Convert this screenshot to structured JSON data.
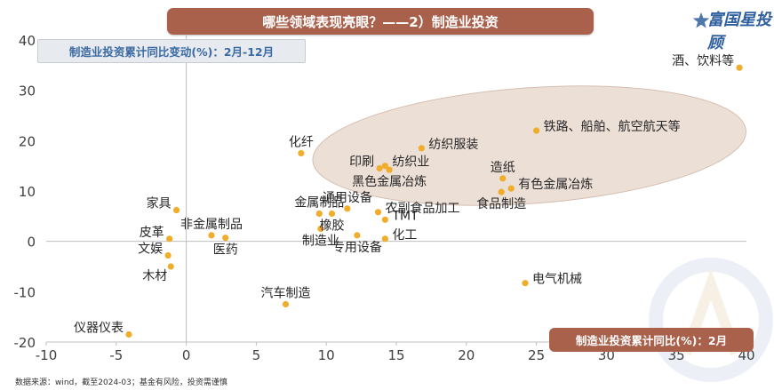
{
  "header": {
    "title": "哪些领域表现亮眼？——2）制造业投资",
    "y_axis_box": "制造业投资累计同比变动(%)：2月-12月",
    "x_axis_box": "制造业投资累计同比(%)：2月"
  },
  "brand": {
    "text": "富国星投顾",
    "icon": "star-logo-icon"
  },
  "footer": {
    "source": "数据来源：wind，截至2024-03；基金有风险，投资需谨慎"
  },
  "colors": {
    "banner": "#a9614b",
    "point": "#f0ad2b",
    "ellipse": "#e9d9cf",
    "subtitle_text": "#3a6aa3",
    "brand": "#2f5f9e"
  },
  "chart_data": {
    "type": "scatter",
    "xlim": [
      -10,
      40
    ],
    "ylim": [
      -20,
      40
    ],
    "x_ticks": [
      "-10",
      "-5",
      "0",
      "5",
      "10",
      "15",
      "20",
      "25",
      "30",
      "35",
      "40"
    ],
    "y_ticks": [
      "-20",
      "-10",
      "0",
      "10",
      "20",
      "30",
      "40"
    ],
    "grid": false,
    "highlight_ellipse": {
      "cx": 24.5,
      "cy": 19,
      "rx": 15.5,
      "ry": 11.5
    },
    "points": [
      {
        "label": "酒、饮料等",
        "x": 39.5,
        "y": 34.5,
        "label_pos": "left"
      },
      {
        "label": "铁路、船舶、航空航天等",
        "x": 25,
        "y": 22,
        "label_pos": "right"
      },
      {
        "label": "纺织服装",
        "x": 16.8,
        "y": 18.5,
        "label_pos": "right"
      },
      {
        "label": "化纤",
        "x": 8.2,
        "y": 17.5,
        "label_pos": "above"
      },
      {
        "label": "印刷",
        "x": 13.8,
        "y": 14.5,
        "label_pos": "left"
      },
      {
        "label": "纺织业",
        "x": 14.2,
        "y": 15,
        "label_pos": "right"
      },
      {
        "label": "黑色金属冶炼",
        "x": 14.5,
        "y": 14.2,
        "label_pos": "below"
      },
      {
        "label": "造纸",
        "x": 22.6,
        "y": 12.5,
        "label_pos": "above"
      },
      {
        "label": "有色金属冶炼",
        "x": 23.2,
        "y": 10.5,
        "label_pos": "right"
      },
      {
        "label": "食品制造",
        "x": 22.5,
        "y": 9.8,
        "label_pos": "below"
      },
      {
        "label": "金属制品",
        "x": 9.5,
        "y": 5.5,
        "label_pos": "above"
      },
      {
        "label": "通用设备",
        "x": 11.5,
        "y": 6.5,
        "label_pos": "above"
      },
      {
        "label": "农副食品加工",
        "x": 13.7,
        "y": 5.8,
        "label_pos": "right"
      },
      {
        "label": "橡胶",
        "x": 10.4,
        "y": 5.5,
        "label_pos": "below"
      },
      {
        "label": "TMT",
        "x": 14.2,
        "y": 4.3,
        "label_pos": "right"
      },
      {
        "label": "制造业",
        "x": 9.6,
        "y": 2.5,
        "label_pos": "below"
      },
      {
        "label": "化工",
        "x": 14.2,
        "y": 0.5,
        "label_pos": "right"
      },
      {
        "label": "专用设备",
        "x": 12.2,
        "y": 1.2,
        "label_pos": "below"
      },
      {
        "label": "家具",
        "x": -0.7,
        "y": 6.2,
        "label_pos": "left"
      },
      {
        "label": "非金属制品",
        "x": 1.8,
        "y": 1.2,
        "label_pos": "above"
      },
      {
        "label": "医药",
        "x": 2.8,
        "y": 0.7,
        "label_pos": "below"
      },
      {
        "label": "皮革",
        "x": -1.2,
        "y": 0.5,
        "label_pos": "left"
      },
      {
        "label": "文娱",
        "x": -1.3,
        "y": -2.8,
        "label_pos": "left"
      },
      {
        "label": "木材",
        "x": -1.1,
        "y": -5,
        "label_pos": "below-left"
      },
      {
        "label": "电气机械",
        "x": 24.2,
        "y": -8.3,
        "label_pos": "right"
      },
      {
        "label": "汽车制造",
        "x": 7.1,
        "y": -12.5,
        "label_pos": "above"
      },
      {
        "label": "仪器仪表",
        "x": -4.1,
        "y": -18.5,
        "label_pos": "left"
      }
    ]
  }
}
